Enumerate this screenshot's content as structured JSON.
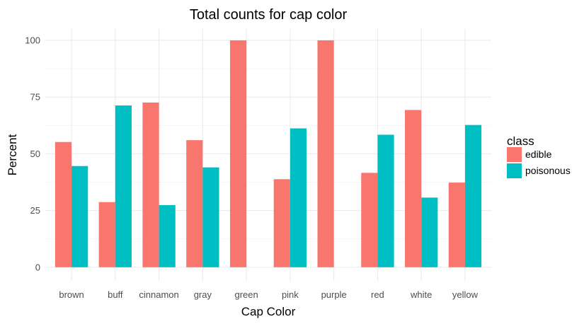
{
  "chart_data": {
    "type": "bar",
    "title": "Total counts for cap color",
    "xlabel": "Cap Color",
    "ylabel": "Percent",
    "categories": [
      "brown",
      "buff",
      "cinnamon",
      "gray",
      "green",
      "pink",
      "purple",
      "red",
      "white",
      "yellow"
    ],
    "series": [
      {
        "name": "edible",
        "color": "#F8766D",
        "values": [
          55.2,
          28.7,
          72.6,
          56.0,
          100,
          38.8,
          100,
          41.6,
          69.3,
          37.3
        ]
      },
      {
        "name": "poisonous",
        "color": "#00BFC4",
        "values": [
          44.6,
          71.3,
          27.4,
          44.0,
          0,
          61.2,
          0,
          58.4,
          30.7,
          62.7
        ]
      }
    ],
    "yticks": [
      0,
      25,
      50,
      75,
      100
    ],
    "ylim": [
      -6,
      105
    ],
    "grid": true,
    "legend": {
      "title": "class",
      "position": "right"
    }
  }
}
